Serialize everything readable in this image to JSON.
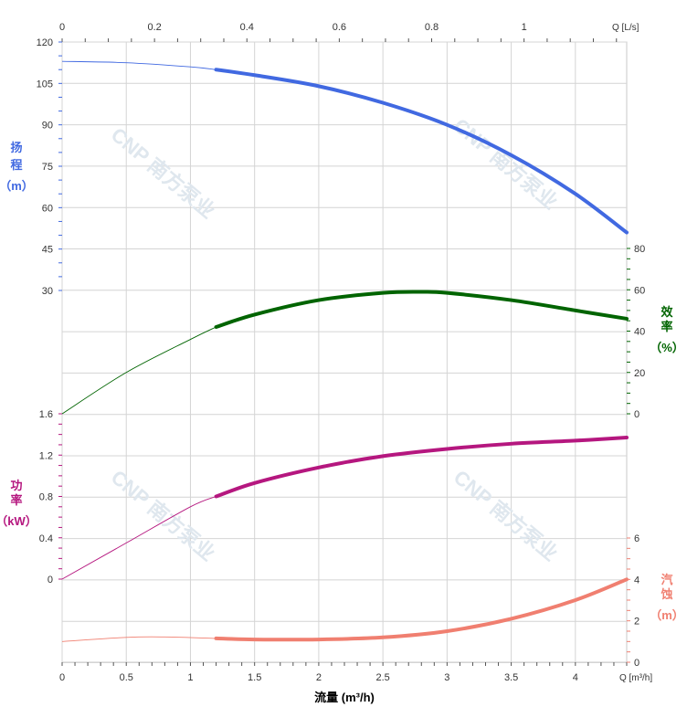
{
  "chart_data": {
    "type": "line",
    "xlabel": "流量 (m³/h)",
    "x_unit_label": "Q [m³/h]",
    "x_ticks": [
      "0",
      "0.5",
      "1",
      "1.5",
      "2",
      "2.5",
      "3",
      "3.5",
      "4"
    ],
    "x_range": [
      0,
      4.4
    ],
    "x2_unit_label": "Q [L/s]",
    "x2_ticks": [
      "0",
      "0.2",
      "0.4",
      "0.6",
      "0.8",
      "1"
    ],
    "watermark": "CNP 南方泵业",
    "colors": {
      "head": "#4169e1",
      "efficiency": "#006400",
      "power": "#b5177f",
      "npsh": "#f07f70"
    },
    "head": {
      "label": [
        "扬",
        "程",
        "（m）"
      ],
      "ticks": [
        "120",
        "105",
        "90",
        "75",
        "60",
        "45",
        "30"
      ],
      "range": [
        30,
        120
      ],
      "x": [
        0,
        0.5,
        1.0,
        1.2,
        1.5,
        2.0,
        2.5,
        3.0,
        3.5,
        4.0,
        4.4
      ],
      "y": [
        113,
        112.5,
        111,
        110,
        108,
        104,
        98,
        90,
        79,
        65,
        51
      ]
    },
    "efficiency": {
      "label": [
        "效",
        "率",
        "（%）"
      ],
      "ticks": [
        "80",
        "60",
        "40",
        "20",
        "0"
      ],
      "range": [
        0,
        80
      ],
      "x": [
        0,
        0.5,
        1.0,
        1.2,
        1.5,
        2.0,
        2.5,
        2.8,
        3.0,
        3.5,
        4.0,
        4.4
      ],
      "y": [
        0,
        20,
        36,
        42,
        48,
        55,
        58.5,
        59,
        58.5,
        55,
        50,
        46
      ]
    },
    "power": {
      "label": [
        "功",
        "率",
        "（kW）"
      ],
      "ticks": [
        "1.6",
        "1.2",
        "0.8",
        "0.4",
        "0"
      ],
      "range": [
        0,
        1.6
      ],
      "x": [
        0,
        0.5,
        1.0,
        1.2,
        1.5,
        2.0,
        2.5,
        3.0,
        3.5,
        4.0,
        4.4
      ],
      "y": [
        0,
        0.35,
        0.7,
        0.8,
        0.93,
        1.08,
        1.19,
        1.26,
        1.31,
        1.34,
        1.37
      ]
    },
    "npsh": {
      "label": [
        "汽",
        "蚀",
        "（m）"
      ],
      "ticks": [
        "6",
        "4",
        "2",
        "0"
      ],
      "range": [
        0,
        6
      ],
      "x": [
        0,
        0.5,
        0.8,
        1.2,
        1.5,
        2.0,
        2.5,
        3.0,
        3.5,
        4.0,
        4.4
      ],
      "y": [
        1.0,
        1.2,
        1.22,
        1.15,
        1.1,
        1.1,
        1.2,
        1.5,
        2.1,
        3.0,
        4.0
      ]
    },
    "bold_from_x": 1.2,
    "grid": true
  }
}
